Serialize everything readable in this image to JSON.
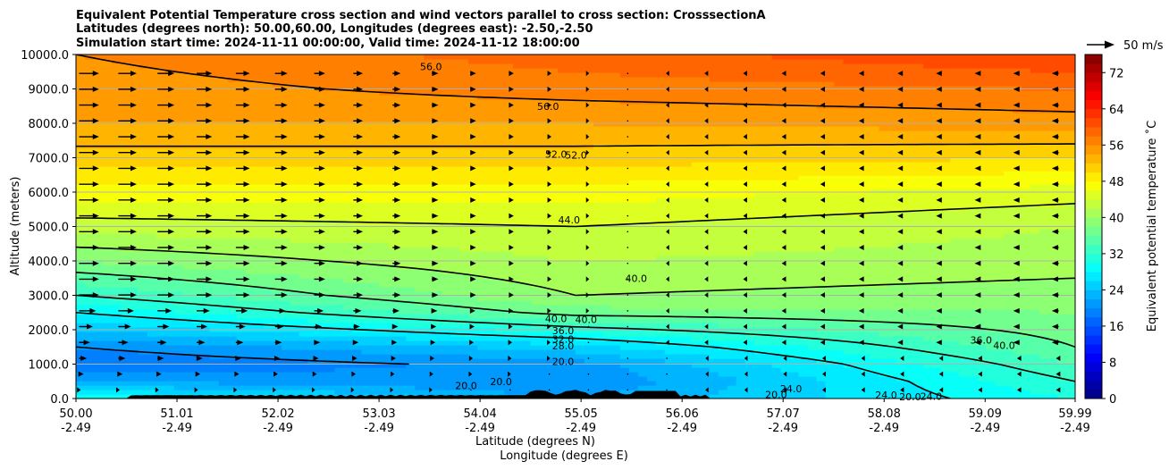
{
  "chart_data": {
    "type": "heatmap",
    "title": [
      "Equivalent Potential Temperature cross section and wind vectors parallel to cross section: CrosssectionA",
      "Latitudes (degrees north): 50.00,60.00, Longitudes (degrees east): -2.50,-2.50",
      "Simulation start time: 2024-11-11 00:00:00, Valid time: 2024-11-12 18:00:00"
    ],
    "ylabel": "Altitude (meters)",
    "xlabel_lat": "Latitude (degrees N)",
    "xlabel_lon": "Longitude (degrees E)",
    "ylim": [
      0,
      10000
    ],
    "xlim": [
      50.0,
      59.99
    ],
    "y_ticks": [
      0,
      1000,
      2000,
      3000,
      4000,
      5000,
      6000,
      7000,
      8000,
      9000,
      10000
    ],
    "y_tick_labels": [
      "0.0",
      "1000.0",
      "2000.0",
      "3000.0",
      "4000.0",
      "5000.0",
      "6000.0",
      "7000.0",
      "8000.0",
      "9000.0",
      "10000.0"
    ],
    "x_ticks": [
      50.0,
      51.01,
      52.02,
      53.03,
      54.04,
      55.05,
      56.06,
      57.07,
      58.08,
      59.09,
      59.99
    ],
    "x_tick_lat_labels": [
      "50.00",
      "51.01",
      "52.02",
      "53.03",
      "54.04",
      "55.05",
      "56.06",
      "57.07",
      "58.08",
      "59.09",
      "59.99"
    ],
    "x_tick_lon_labels": [
      "-2.49",
      "-2.49",
      "-2.49",
      "-2.49",
      "-2.49",
      "-2.49",
      "-2.49",
      "-2.49",
      "-2.49",
      "-2.49",
      "-2.49"
    ],
    "colorbar": {
      "label": "Equivalent potential temperature ˚C",
      "min": 0,
      "max": 76,
      "step": 2,
      "ticks": [
        0,
        8,
        16,
        24,
        32,
        40,
        48,
        56,
        64,
        72
      ],
      "tick_labels": [
        "0",
        "8",
        "16",
        "24",
        "32",
        "40",
        "48",
        "56",
        "64",
        "72"
      ]
    },
    "wind_reference": {
      "label": "50 m/s",
      "speed": 50
    },
    "theta_e_profile": {
      "altitude_m": [
        0,
        500,
        1000,
        1500,
        2000,
        2500,
        3000,
        4000,
        5000,
        6000,
        7000,
        8000,
        9000,
        10000
      ],
      "south_C": [
        30,
        22,
        18,
        20,
        24,
        28,
        32,
        38,
        43,
        47,
        51,
        54,
        55,
        56
      ],
      "center_C": [
        22,
        20,
        21,
        25,
        31,
        37,
        40,
        42,
        44,
        47,
        51,
        54,
        57,
        59
      ],
      "north_C": [
        30,
        32,
        34,
        36,
        37,
        38,
        39,
        41,
        42,
        45,
        50,
        55,
        58,
        62
      ]
    },
    "contour_labels": [
      {
        "text": "56.0",
        "lat": 54.72,
        "alt": 8500
      },
      {
        "text": "56.0",
        "lat": 53.55,
        "alt": 9650
      },
      {
        "text": "52.0",
        "lat": 54.8,
        "alt": 7100
      },
      {
        "text": "52.0",
        "lat": 55.0,
        "alt": 7080
      },
      {
        "text": "44.0",
        "lat": 54.93,
        "alt": 5200
      },
      {
        "text": "40.0",
        "lat": 55.6,
        "alt": 3500
      },
      {
        "text": "40.0",
        "lat": 54.8,
        "alt": 2330
      },
      {
        "text": "40.0",
        "lat": 55.1,
        "alt": 2300
      },
      {
        "text": "36.0",
        "lat": 54.87,
        "alt": 1980
      },
      {
        "text": "32.0",
        "lat": 54.87,
        "alt": 1730
      },
      {
        "text": "28.0",
        "lat": 54.87,
        "alt": 1530
      },
      {
        "text": "20.0",
        "lat": 54.87,
        "alt": 1080
      },
      {
        "text": "20.0",
        "lat": 54.25,
        "alt": 500
      },
      {
        "text": "20.0",
        "lat": 53.9,
        "alt": 380
      },
      {
        "text": "20.0",
        "lat": 57.0,
        "alt": 120
      },
      {
        "text": "20.0",
        "lat": 58.34,
        "alt": 50
      },
      {
        "text": "24.0",
        "lat": 58.1,
        "alt": 100
      },
      {
        "text": "24.0",
        "lat": 58.55,
        "alt": 70
      },
      {
        "text": "24.0",
        "lat": 57.15,
        "alt": 280
      },
      {
        "text": "36.0",
        "lat": 59.05,
        "alt": 1700
      },
      {
        "text": "40.0",
        "lat": 59.28,
        "alt": 1550
      }
    ],
    "contour_levels": [
      20,
      28,
      32,
      36,
      40,
      44,
      52,
      56
    ],
    "wind_vectors": "southern half: northward (positive) about 10 m/s above 3000 m, decreasing to 0 near 55.5N; northern half: weak southward flow aloft"
  }
}
